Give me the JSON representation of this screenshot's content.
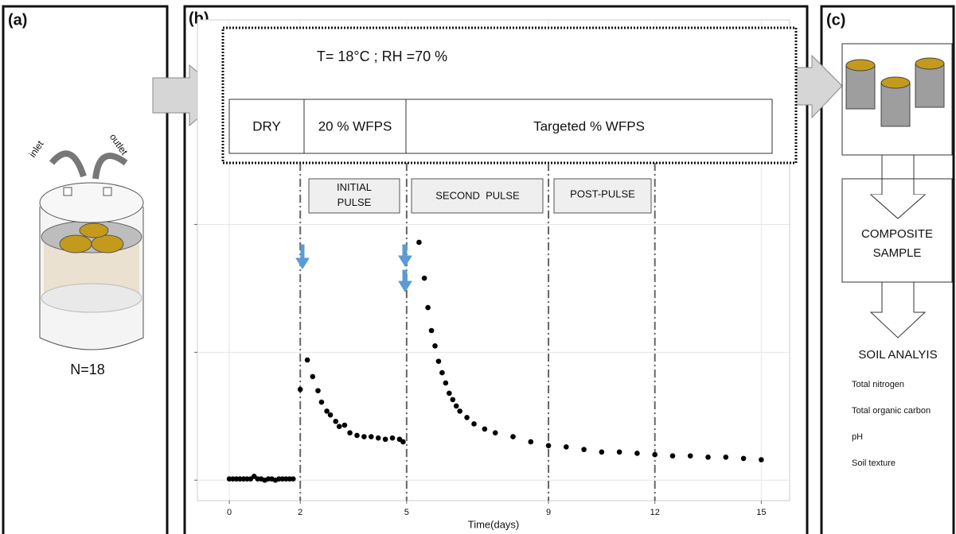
{
  "panel_a": {
    "label": "(a)",
    "inlet": "inlet",
    "outlet": "outlet",
    "count": "N=18"
  },
  "panel_b": {
    "label": "(b)",
    "conditions": "T= 18°C ; RH =70 %",
    "moisture": [
      "DRY",
      "20 % WFPS",
      "Targeted % WFPS"
    ],
    "phases": [
      "INITIAL PULSE",
      "SECOND  PULSE",
      "POST-PULSE"
    ]
  },
  "panel_c": {
    "label": "(c)",
    "composite": "COMPOSITE SAMPLE",
    "analysis_title": "SOIL ANALYIS",
    "analyses": [
      "Total nitrogen",
      "Total organic carbon",
      "pH",
      "Soil texture"
    ]
  },
  "chart_data": {
    "type": "scatter",
    "x_label": "Time(days)",
    "xlim": [
      -0.9,
      15.8
    ],
    "ylim": [
      -0.16,
      3.6
    ],
    "xticks": [
      0,
      2,
      5,
      9,
      12,
      15
    ],
    "yticks": [
      0,
      1,
      2
    ],
    "grid": true,
    "phase_lines": [
      2,
      5,
      9,
      12
    ],
    "color": "#000000",
    "series": [
      {
        "x": [
          0,
          0.1,
          0.2,
          0.3,
          0.4,
          0.5,
          0.6,
          0.7,
          0.8,
          0.9,
          1.0,
          1.1,
          1.2,
          1.3,
          1.4,
          1.5,
          1.6,
          1.7,
          1.8,
          2.0,
          2.2,
          2.35,
          2.5,
          2.6,
          2.75,
          2.85,
          3.0,
          3.1,
          3.25,
          3.4,
          3.6,
          3.8,
          4.0,
          4.2,
          4.4,
          4.6,
          4.8,
          4.9,
          5.35,
          5.5,
          5.6,
          5.7,
          5.8,
          5.9,
          6.0,
          6.1,
          6.2,
          6.3,
          6.4,
          6.5,
          6.7,
          6.9,
          7.2,
          7.5,
          8.0,
          8.5,
          9.0,
          9.5,
          10.0,
          10.5,
          11.0,
          11.5,
          12.0,
          12.5,
          13.0,
          13.5,
          14.0,
          14.5,
          15.0
        ],
        "values": [
          0.01,
          0.01,
          0.01,
          0.01,
          0.01,
          0.01,
          0.01,
          0.03,
          0.01,
          0.01,
          0.0,
          0.01,
          0.01,
          0.0,
          0.01,
          0.01,
          0.01,
          0.01,
          0.01,
          0.71,
          0.94,
          0.81,
          0.7,
          0.61,
          0.54,
          0.51,
          0.46,
          0.42,
          0.43,
          0.37,
          0.35,
          0.34,
          0.34,
          0.33,
          0.32,
          0.33,
          0.32,
          0.3,
          1.86,
          1.58,
          1.35,
          1.17,
          1.05,
          0.93,
          0.84,
          0.76,
          0.68,
          0.63,
          0.58,
          0.54,
          0.49,
          0.44,
          0.4,
          0.37,
          0.34,
          0.3,
          0.27,
          0.26,
          0.24,
          0.22,
          0.22,
          0.21,
          0.2,
          0.19,
          0.19,
          0.18,
          0.18,
          0.17,
          0.16
        ]
      }
    ]
  }
}
